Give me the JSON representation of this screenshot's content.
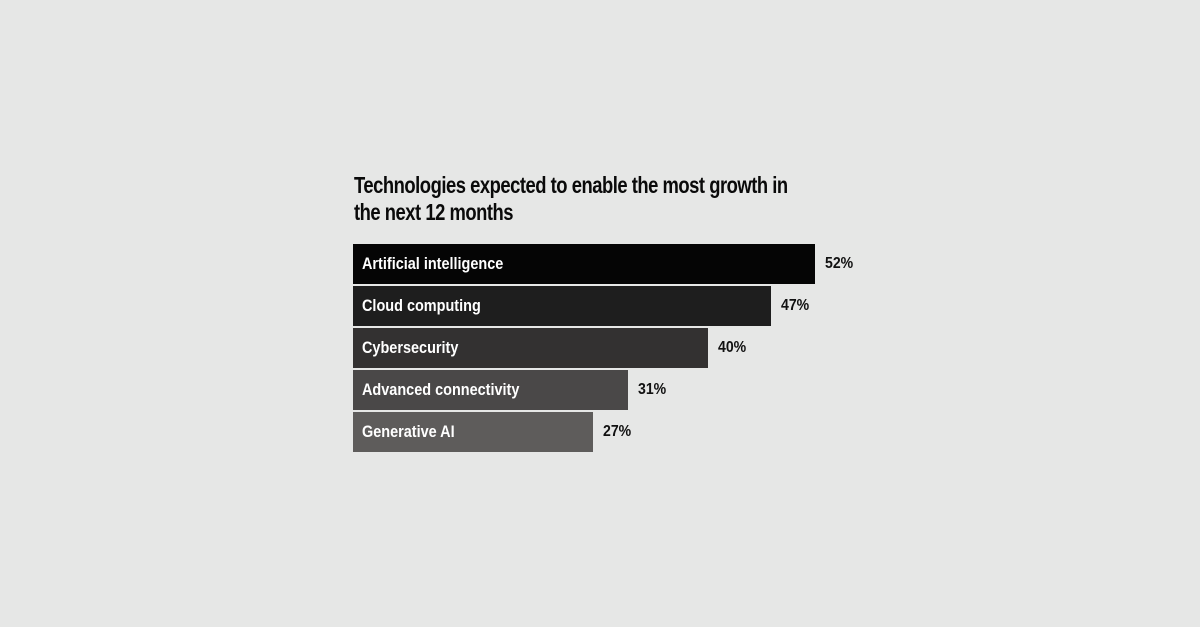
{
  "chart_data": {
    "type": "bar",
    "orientation": "horizontal",
    "title": "Technologies expected to enable the most growth in the next 12 months",
    "title_lines": [
      "Technologies expected to enable the most growth in",
      "the next 12 months"
    ],
    "categories": [
      "Artificial intelligence",
      "Cloud computing",
      "Cybersecurity",
      "Advanced connectivity",
      "Generative AI"
    ],
    "values": [
      52,
      47,
      40,
      31,
      27
    ],
    "value_labels": [
      "52%",
      "47%",
      "40%",
      "31%",
      "27%"
    ],
    "unit": "%",
    "xlim": [
      0,
      52
    ],
    "grid": false,
    "colors": [
      "#050505",
      "#1e1e1e",
      "#333131",
      "#4a4848",
      "#5e5c5b"
    ],
    "background": "#e6e7e6"
  }
}
